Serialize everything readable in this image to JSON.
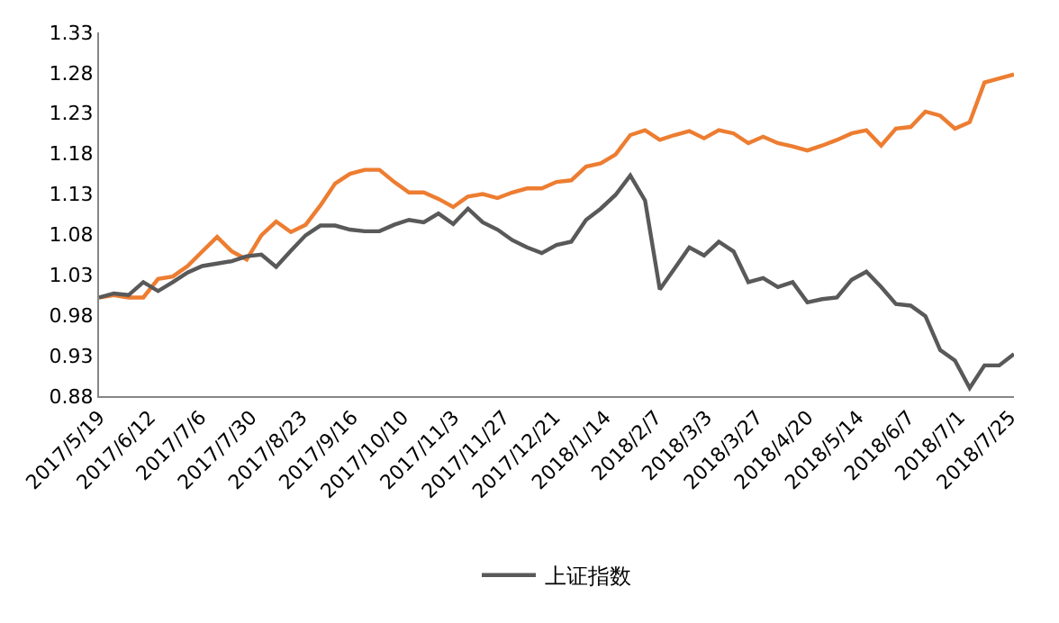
{
  "chart_data": {
    "type": "line",
    "x": [
      "2017-05-19",
      "2017-05-26",
      "2017-06-02",
      "2017-06-09",
      "2017-06-16",
      "2017-06-23",
      "2017-06-30",
      "2017-07-07",
      "2017-07-14",
      "2017-07-21",
      "2017-07-28",
      "2017-08-04",
      "2017-08-11",
      "2017-08-18",
      "2017-08-25",
      "2017-09-01",
      "2017-09-08",
      "2017-09-15",
      "2017-09-22",
      "2017-09-29",
      "2017-10-06",
      "2017-10-13",
      "2017-10-20",
      "2017-10-27",
      "2017-11-03",
      "2017-11-10",
      "2017-11-17",
      "2017-11-24",
      "2017-12-01",
      "2017-12-08",
      "2017-12-15",
      "2017-12-22",
      "2017-12-29",
      "2018-01-05",
      "2018-01-12",
      "2018-01-19",
      "2018-01-26",
      "2018-02-02",
      "2018-02-09",
      "2018-02-16",
      "2018-02-23",
      "2018-03-02",
      "2018-03-09",
      "2018-03-16",
      "2018-03-23",
      "2018-03-30",
      "2018-04-06",
      "2018-04-13",
      "2018-04-20",
      "2018-04-27",
      "2018-05-04",
      "2018-05-11",
      "2018-05-18",
      "2018-05-25",
      "2018-06-01",
      "2018-06-08",
      "2018-06-15",
      "2018-06-22",
      "2018-06-29",
      "2018-07-06",
      "2018-07-13",
      "2018-07-20",
      "2018-07-27"
    ],
    "series": [
      {
        "color": "#ed7d31",
        "values": [
          1.002,
          1.005,
          1.002,
          1.002,
          1.025,
          1.028,
          1.041,
          1.059,
          1.077,
          1.059,
          1.049,
          1.079,
          1.096,
          1.083,
          1.092,
          1.116,
          1.143,
          1.155,
          1.16,
          1.16,
          1.145,
          1.132,
          1.132,
          1.124,
          1.114,
          1.127,
          1.13,
          1.125,
          1.132,
          1.137,
          1.137,
          1.145,
          1.147,
          1.164,
          1.168,
          1.179,
          1.203,
          1.209,
          1.197,
          1.203,
          1.208,
          1.199,
          1.209,
          1.205,
          1.193,
          1.201,
          1.193,
          1.189,
          1.184,
          1.19,
          1.197,
          1.205,
          1.209,
          1.19,
          1.211,
          1.213,
          1.232,
          1.227,
          1.211,
          1.219,
          1.268,
          1.273,
          1.278
        ]
      },
      {
        "name": "上证指数",
        "color": "#595959",
        "values": [
          1.002,
          1.007,
          1.005,
          1.021,
          1.01,
          1.021,
          1.033,
          1.041,
          1.044,
          1.047,
          1.053,
          1.055,
          1.04,
          1.06,
          1.079,
          1.091,
          1.091,
          1.086,
          1.084,
          1.084,
          1.092,
          1.098,
          1.095,
          1.106,
          1.093,
          1.112,
          1.095,
          1.086,
          1.073,
          1.064,
          1.057,
          1.067,
          1.071,
          1.098,
          1.112,
          1.129,
          1.153,
          1.122,
          1.012,
          1.038,
          1.064,
          1.054,
          1.071,
          1.059,
          1.021,
          1.026,
          1.015,
          1.021,
          0.996,
          1.0,
          1.002,
          1.024,
          1.034,
          1.015,
          0.994,
          0.992,
          0.979,
          0.937,
          0.924,
          0.89,
          0.918,
          0.918,
          0.932
        ]
      }
    ],
    "xlim": [
      "2017-05-19",
      "2018-07-27"
    ],
    "xticks": [
      {
        "value": "2017-05-19",
        "label": "2017/5/19"
      },
      {
        "value": "2017-06-12",
        "label": "2017/6/12"
      },
      {
        "value": "2017-07-06",
        "label": "2017/7/6"
      },
      {
        "value": "2017-07-30",
        "label": "2017/7/30"
      },
      {
        "value": "2017-08-23",
        "label": "2017/8/23"
      },
      {
        "value": "2017-09-16",
        "label": "2017/9/16"
      },
      {
        "value": "2017-10-10",
        "label": "2017/10/10"
      },
      {
        "value": "2017-11-03",
        "label": "2017/11/3"
      },
      {
        "value": "2017-11-27",
        "label": "2017/11/27"
      },
      {
        "value": "2017-12-21",
        "label": "2017/12/21"
      },
      {
        "value": "2018-01-14",
        "label": "2018/1/14"
      },
      {
        "value": "2018-02-07",
        "label": "2018/2/7"
      },
      {
        "value": "2018-03-03",
        "label": "2018/3/3"
      },
      {
        "value": "2018-03-27",
        "label": "2018/3/27"
      },
      {
        "value": "2018-04-20",
        "label": "2018/4/20"
      },
      {
        "value": "2018-05-14",
        "label": "2018/5/14"
      },
      {
        "value": "2018-06-07",
        "label": "2018/6/7"
      },
      {
        "value": "2018-07-01",
        "label": "2018/7/1"
      },
      {
        "value": "2018-07-25",
        "label": "2018/7/25"
      }
    ],
    "ylim": [
      0.88,
      1.33
    ],
    "yticks": [
      0.88,
      0.93,
      0.98,
      1.03,
      1.08,
      1.13,
      1.18,
      1.23,
      1.28,
      1.33
    ],
    "grid": false,
    "legend": "bottom",
    "marker": "none",
    "line_style": "solid"
  }
}
